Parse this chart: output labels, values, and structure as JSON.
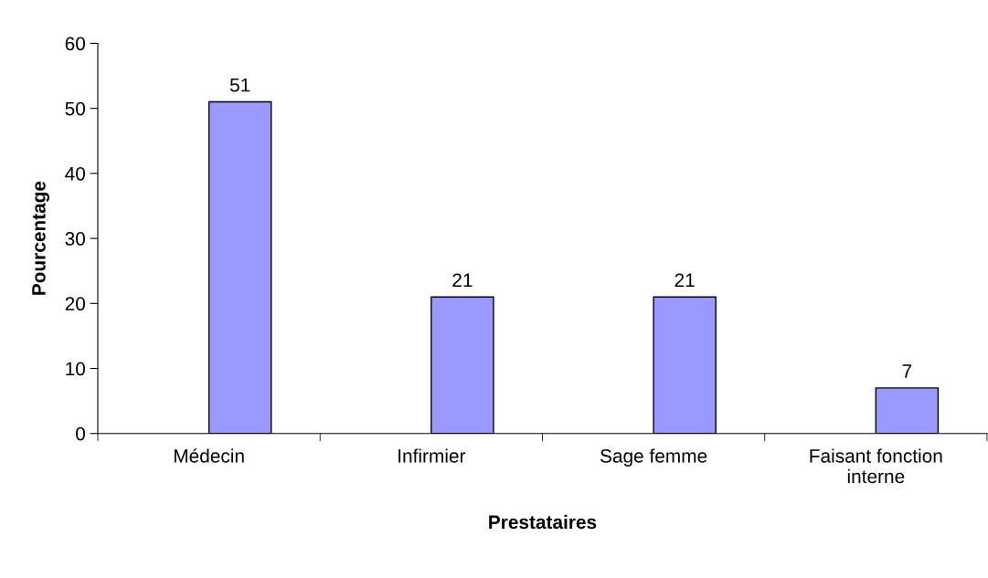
{
  "chart_data": {
    "type": "bar",
    "xlabel": "Prestataires",
    "ylabel": "Pourcentage",
    "categories": [
      "Médecin",
      "Infirmier",
      "Sage femme",
      "Faisant fonction\ninterne"
    ],
    "values": [
      51,
      21,
      21,
      7
    ],
    "color": "#9999ff",
    "ylim": [
      0,
      60
    ],
    "yticks": [
      0,
      10,
      20,
      30,
      40,
      50,
      60
    ],
    "grid": false,
    "data_labels": true
  }
}
